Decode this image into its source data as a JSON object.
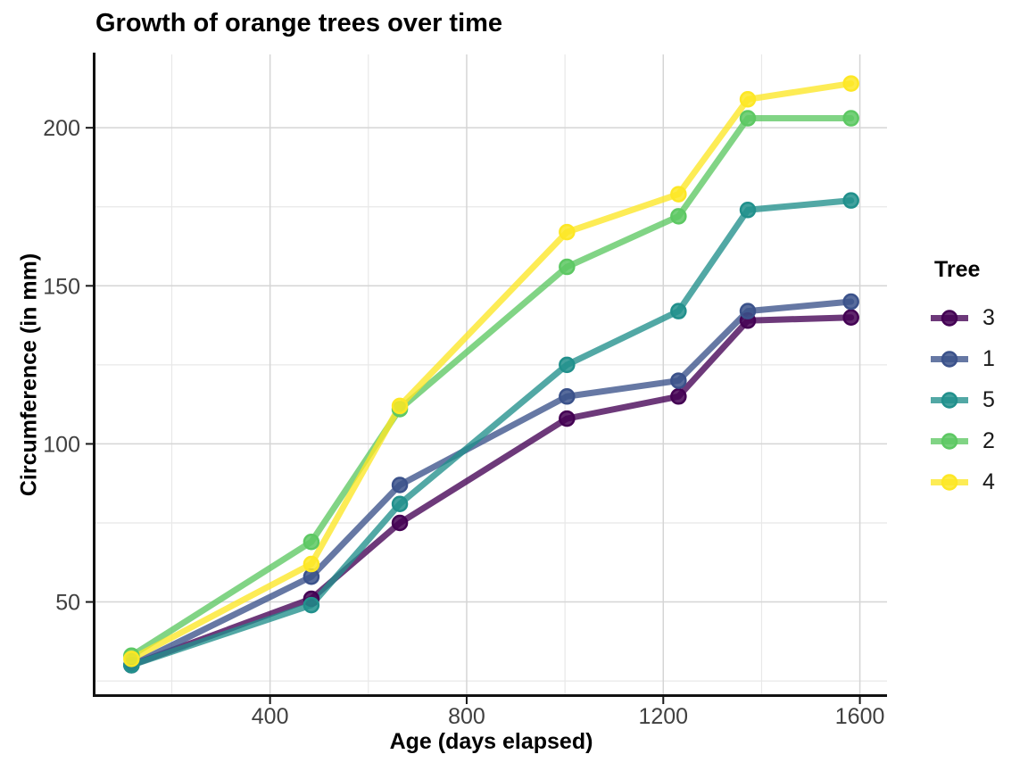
{
  "chart_data": {
    "type": "line",
    "title": "Growth of orange trees over time",
    "xlabel": "Age (days elapsed)",
    "ylabel": "Circumference (in mm)",
    "x": [
      118,
      484,
      664,
      1004,
      1231,
      1372,
      1582
    ],
    "series": [
      {
        "name": "3",
        "color": "#440154",
        "values": [
          30,
          51,
          75,
          108,
          115,
          139,
          140
        ]
      },
      {
        "name": "1",
        "color": "#3B528B",
        "values": [
          30,
          58,
          87,
          115,
          120,
          142,
          145
        ]
      },
      {
        "name": "5",
        "color": "#21908C",
        "values": [
          30,
          49,
          81,
          125,
          142,
          174,
          177
        ]
      },
      {
        "name": "2",
        "color": "#5DC863",
        "values": [
          33,
          69,
          111,
          156,
          172,
          203,
          203
        ]
      },
      {
        "name": "4",
        "color": "#FDE725",
        "values": [
          32,
          62,
          112,
          167,
          179,
          209,
          214
        ]
      }
    ],
    "legend": {
      "title": "Tree",
      "position": "right"
    },
    "x_ticks": [
      400,
      800,
      1200,
      1600
    ],
    "y_ticks": [
      50,
      100,
      150,
      200
    ],
    "x_minor_ticks": [
      200,
      600,
      1000,
      1400
    ],
    "y_minor_ticks": [
      25,
      75,
      125,
      175
    ],
    "xlim": [
      44.8,
      1655.2
    ],
    "ylim": [
      20.8,
      223.2
    ],
    "grid": true,
    "style": {
      "background": "#FFFFFF",
      "grid_major_color": "#D5D5D5",
      "grid_minor_color": "#E8E8E8",
      "axis_line_color": "#111111",
      "tick_mark_color": "#1a1a1a",
      "tick_label_color": "#404040",
      "line_width": 7,
      "line_alpha": 0.78,
      "point_radius": 8,
      "point_alpha": 0.85
    }
  }
}
